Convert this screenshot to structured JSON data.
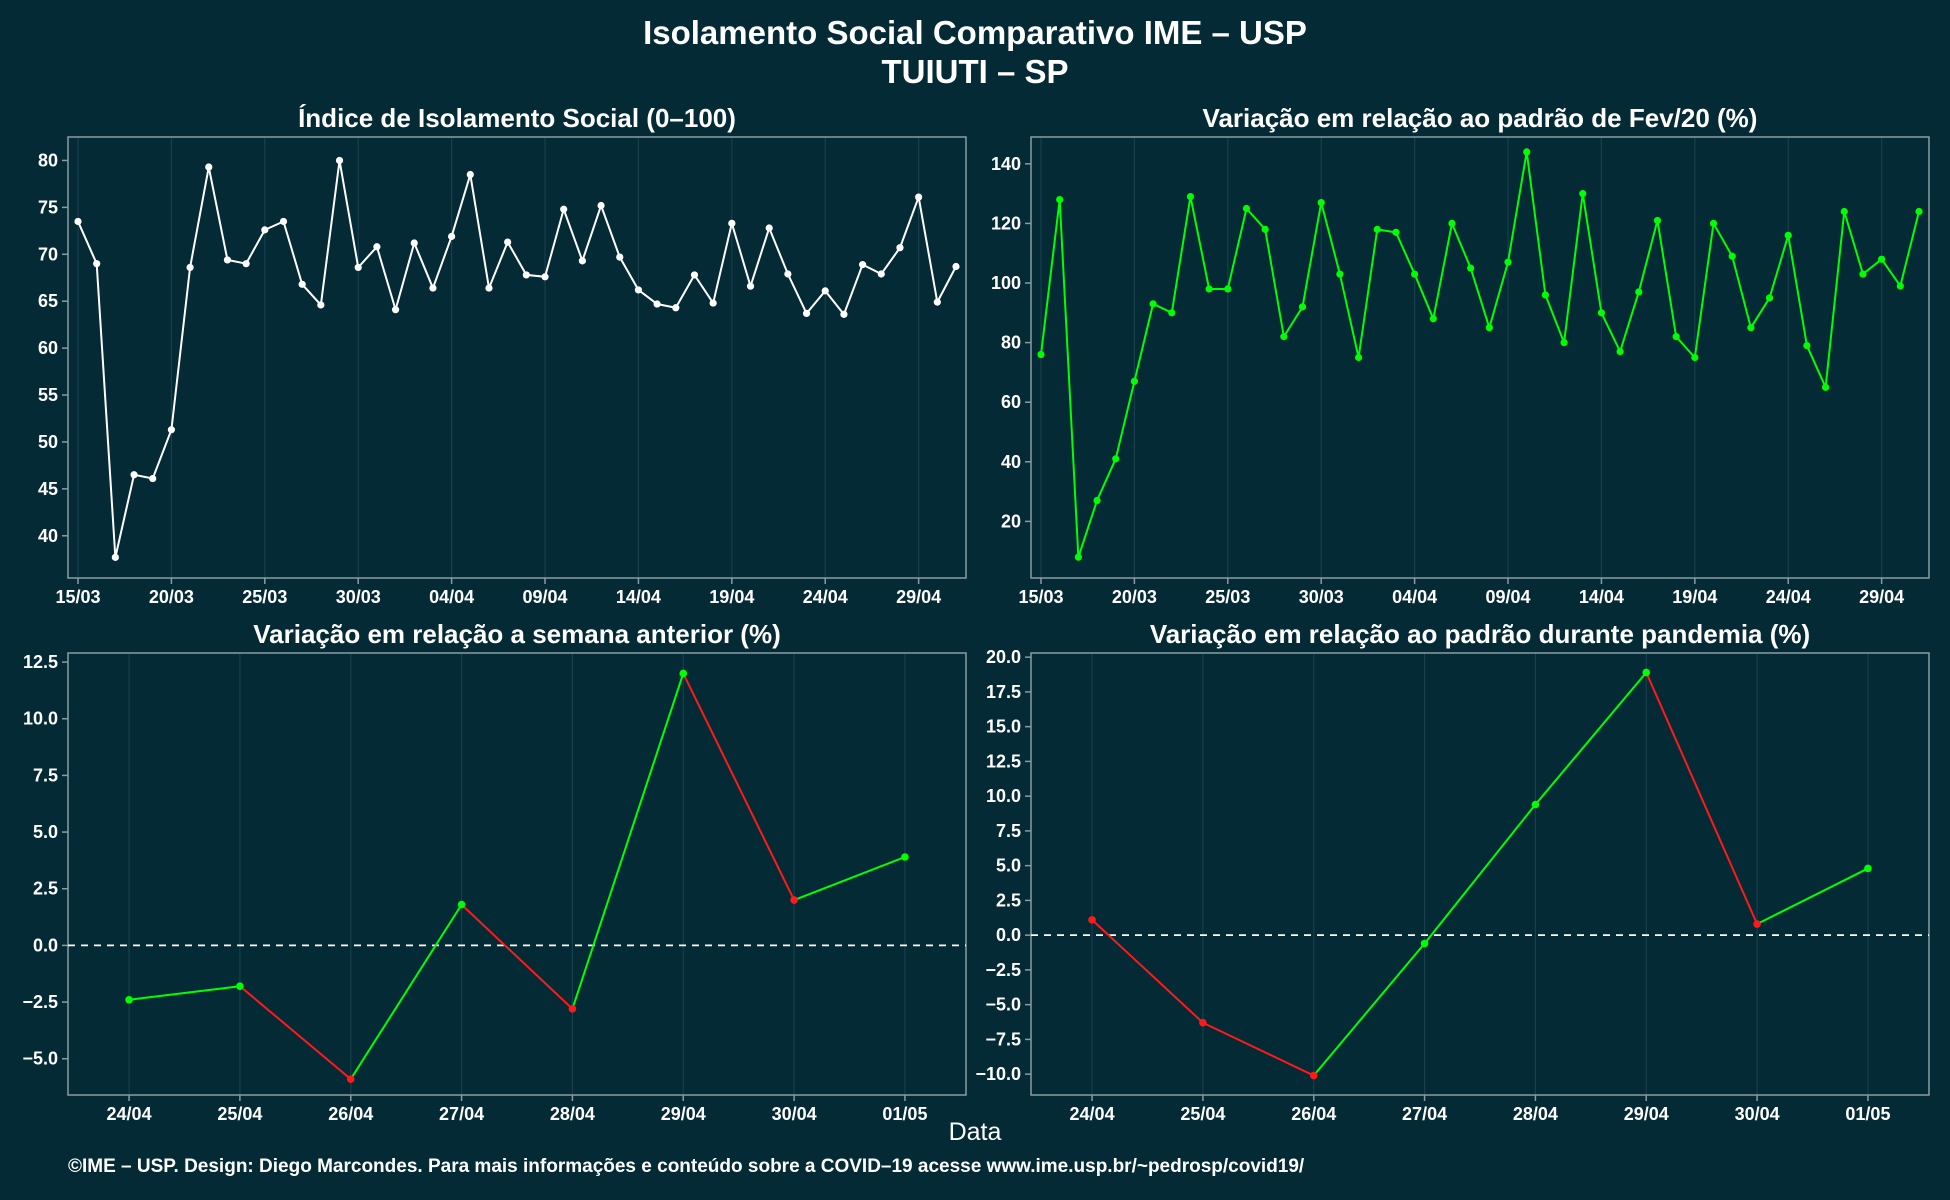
{
  "header": {
    "title": "Isolamento Social Comparativo IME – USP",
    "subtitle": "TUIUTI – SP"
  },
  "x_caption": "Data",
  "footer": "©IME – USP. Design: Diego Marcondes. Para mais informações e conteúdo sobre a COVID–19 acesse www.ime.usp.br/~pedrosp/covid19/",
  "colors": {
    "background": "#042a36",
    "axis": "#8a9ca1",
    "grid": "#17404c",
    "white_line": "#ffffff",
    "positive": "#00ff00",
    "negative": "#ff1a1a"
  },
  "chart_data": [
    {
      "type": "line",
      "title": "Índice de Isolamento Social (0–100)",
      "x_start": "2020-03-15",
      "x_end": "2020-05-01",
      "x_ticks": [
        "15/03",
        "20/03",
        "25/03",
        "30/03",
        "04/04",
        "09/04",
        "14/04",
        "19/04",
        "24/04",
        "29/04"
      ],
      "ylim": [
        35.5,
        82.5
      ],
      "y_ticks": [
        40,
        45,
        50,
        55,
        60,
        65,
        70,
        75,
        80
      ],
      "series": [
        {
          "color": "#ffffff",
          "values": [
            73.5,
            69.0,
            37.7,
            46.5,
            46.1,
            51.3,
            68.6,
            79.3,
            69.4,
            69.0,
            72.6,
            73.5,
            66.8,
            64.6,
            80.0,
            68.6,
            70.8,
            64.1,
            71.2,
            66.4,
            71.9,
            78.5,
            66.4,
            71.3,
            67.8,
            67.6,
            74.8,
            69.3,
            75.2,
            69.7,
            66.2,
            64.7,
            64.3,
            67.8,
            64.8,
            73.3,
            66.6,
            72.8,
            67.9,
            63.7,
            66.1,
            63.6,
            68.9,
            67.9,
            70.7,
            76.1,
            64.9,
            68.7
          ]
        }
      ]
    },
    {
      "type": "line",
      "title": "Variação em relação ao padrão de Fev/20 (%)",
      "x_start": "2020-03-15",
      "x_end": "2020-05-01",
      "x_ticks": [
        "15/03",
        "20/03",
        "25/03",
        "30/03",
        "04/04",
        "09/04",
        "14/04",
        "19/04",
        "24/04",
        "29/04"
      ],
      "ylim": [
        1,
        149
      ],
      "y_ticks": [
        20,
        40,
        60,
        80,
        100,
        120,
        140
      ],
      "series": [
        {
          "color": "#00ff00",
          "values": [
            76,
            128,
            8,
            27,
            41,
            67,
            93,
            90,
            129,
            98,
            98,
            125,
            118,
            82,
            92,
            127,
            103,
            75,
            118,
            117,
            103,
            88,
            120,
            105,
            85,
            107,
            144,
            96,
            80,
            130,
            90,
            77,
            97,
            121,
            82,
            75,
            120,
            109,
            85,
            95,
            116,
            79,
            65,
            124,
            103,
            108,
            99,
            124
          ]
        }
      ]
    },
    {
      "type": "line",
      "title": "Variação em relação a semana anterior (%)",
      "categories": [
        "24/04",
        "25/04",
        "26/04",
        "27/04",
        "28/04",
        "29/04",
        "30/04",
        "01/05"
      ],
      "values": [
        -2.4,
        -1.8,
        -5.9,
        1.8,
        -2.8,
        12.0,
        2.0,
        3.9
      ],
      "ylim": [
        -6.6,
        12.9
      ],
      "y_ticks": [
        -5.0,
        -2.5,
        0.0,
        2.5,
        5.0,
        7.5,
        10.0,
        12.5
      ],
      "y_tick_labels": [
        "−5.0",
        "−2.5",
        "0.0",
        "2.5",
        "5.0",
        "7.5",
        "10.0",
        "12.5"
      ],
      "reference_line": 0
    },
    {
      "type": "line",
      "title": "Variação em relação ao padrão durante pandemia (%)",
      "categories": [
        "24/04",
        "25/04",
        "26/04",
        "27/04",
        "28/04",
        "29/04",
        "30/04",
        "01/05"
      ],
      "values": [
        1.1,
        -6.3,
        -10.1,
        -0.6,
        9.4,
        18.9,
        0.8,
        4.8
      ],
      "ylim": [
        -11.5,
        20.3
      ],
      "y_ticks": [
        -10.0,
        -7.5,
        -5.0,
        -2.5,
        0.0,
        2.5,
        5.0,
        7.5,
        10.0,
        12.5,
        15.0,
        17.5,
        20.0
      ],
      "y_tick_labels": [
        "−10.0",
        "−7.5",
        "−5.0",
        "−2.5",
        "0.0",
        "2.5",
        "5.0",
        "7.5",
        "10.0",
        "12.5",
        "15.0",
        "17.5",
        "20.0"
      ],
      "reference_line": 0
    }
  ]
}
